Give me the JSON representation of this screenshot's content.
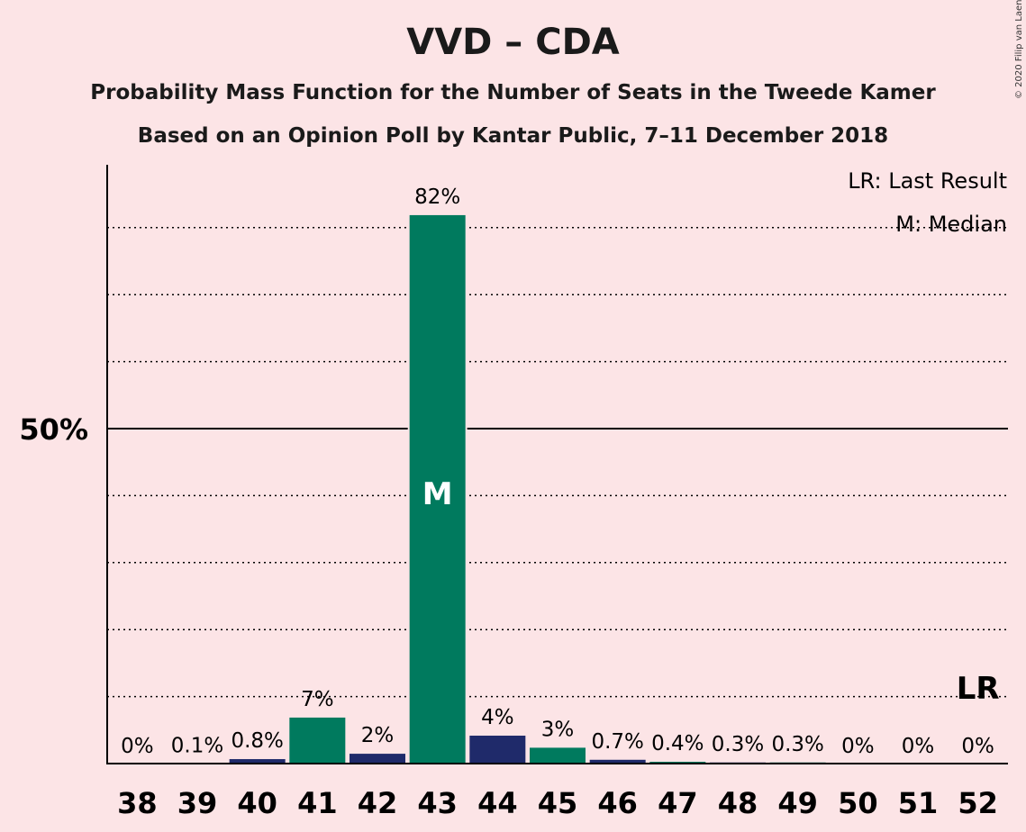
{
  "title": "VVD – CDA",
  "subtitle": "Probability Mass Function for the Number of Seats in the Tweede Kamer",
  "subtitle2": "Based on an Opinion Poll by Kantar Public, 7–11 December 2018",
  "copyright": "© 2020 Filip van Laenen",
  "legend": {
    "last_result": "LR: Last Result",
    "median": "M: Median"
  },
  "colors": {
    "background": "#fce4e6",
    "vvd": "#1f2a6a",
    "cda": "#007a5e",
    "axis": "#000000"
  },
  "chart_data": {
    "type": "bar",
    "categories": [
      "38",
      "39",
      "40",
      "41",
      "42",
      "43",
      "44",
      "45",
      "46",
      "47",
      "48",
      "49",
      "50",
      "51",
      "52"
    ],
    "values": [
      0,
      0.1,
      0.8,
      7,
      1.6,
      82,
      4.3,
      2.5,
      0.7,
      0.4,
      0.3,
      0.3,
      0,
      0,
      0
    ],
    "labels": [
      "0%",
      "0.1%",
      "0.8%",
      "7%",
      "2%",
      "82%",
      "4%",
      "3%",
      "0.7%",
      "0.4%",
      "0.3%",
      "0.3%",
      "0%",
      "0%",
      "0%"
    ],
    "bar_party": [
      "vvd",
      "vvd",
      "vvd",
      "cda",
      "vvd",
      "cda",
      "vvd",
      "cda",
      "vvd",
      "cda",
      "vvd",
      "cda",
      "vvd",
      "cda",
      "vvd"
    ],
    "ylim": [
      0,
      90
    ],
    "y_tick_label": "50%",
    "y_tick_value": 50,
    "gridlines": [
      10,
      20,
      30,
      40,
      60,
      70,
      80
    ],
    "median_seat": "43",
    "median_marker": "M",
    "last_result_seat": "52",
    "last_result_marker": "LR"
  }
}
